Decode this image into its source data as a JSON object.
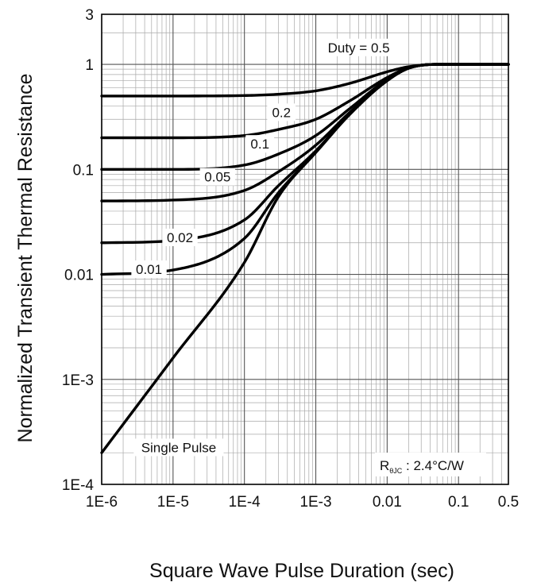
{
  "chart_data": {
    "type": "line",
    "title": "",
    "xlabel": "Square Wave Pulse Duration (sec)",
    "ylabel": "Normalized Transient Thermal Resistance",
    "x_scale": "log",
    "y_scale": "log",
    "xlim": [
      1e-06,
      0.5
    ],
    "ylim": [
      0.0001,
      3
    ],
    "x_tick_labels": [
      "1E-6",
      "1E-5",
      "1E-4",
      "1E-3",
      "0.01",
      "0.1",
      "0.5"
    ],
    "x_tick_values": [
      1e-06,
      1e-05,
      0.0001,
      0.001,
      0.01,
      0.1,
      0.5
    ],
    "y_tick_labels": [
      "1E-4",
      "1E-3",
      "0.01",
      "0.1",
      "1",
      "3"
    ],
    "y_tick_values": [
      0.0001,
      0.001,
      0.01,
      0.1,
      1,
      3
    ],
    "grid": true,
    "annotation": {
      "r_main": "R",
      "r_sub": "θJC",
      "r_value": " : 2.4°C/W"
    },
    "series": [
      {
        "name": "Duty = 0.5",
        "x": [
          1e-06,
          1e-05,
          0.0001,
          0.0003,
          0.001,
          0.003,
          0.01,
          0.02,
          0.05,
          0.1,
          0.5
        ],
        "y": [
          0.5,
          0.5,
          0.505,
          0.52,
          0.56,
          0.66,
          0.85,
          0.95,
          1.0,
          1.0,
          1.0
        ]
      },
      {
        "name": "0.2",
        "x": [
          1e-06,
          1e-05,
          0.0001,
          0.0003,
          0.001,
          0.003,
          0.01,
          0.02,
          0.05,
          0.1,
          0.5
        ],
        "y": [
          0.2,
          0.2,
          0.21,
          0.24,
          0.3,
          0.45,
          0.75,
          0.93,
          1.0,
          1.0,
          1.0
        ]
      },
      {
        "name": "0.1",
        "x": [
          1e-06,
          1e-05,
          0.0001,
          0.0003,
          0.001,
          0.003,
          0.01,
          0.02,
          0.05,
          0.1,
          0.5
        ],
        "y": [
          0.1,
          0.1,
          0.11,
          0.14,
          0.21,
          0.38,
          0.72,
          0.92,
          1.0,
          1.0,
          1.0
        ]
      },
      {
        "name": "0.05",
        "x": [
          1e-06,
          1e-05,
          0.0001,
          0.0003,
          0.001,
          0.003,
          0.01,
          0.02,
          0.05,
          0.1,
          0.5
        ],
        "y": [
          0.05,
          0.051,
          0.063,
          0.095,
          0.17,
          0.35,
          0.7,
          0.92,
          1.0,
          1.0,
          1.0
        ]
      },
      {
        "name": "0.02",
        "x": [
          1e-06,
          1e-05,
          0.0001,
          0.0003,
          0.001,
          0.003,
          0.01,
          0.02,
          0.05,
          0.1,
          0.5
        ],
        "y": [
          0.02,
          0.021,
          0.033,
          0.07,
          0.15,
          0.34,
          0.7,
          0.92,
          1.0,
          1.0,
          1.0
        ]
      },
      {
        "name": "0.01",
        "x": [
          1e-06,
          1e-05,
          0.0001,
          0.0003,
          0.001,
          0.003,
          0.01,
          0.02,
          0.05,
          0.1,
          0.5
        ],
        "y": [
          0.01,
          0.011,
          0.022,
          0.06,
          0.145,
          0.335,
          0.7,
          0.92,
          1.0,
          1.0,
          1.0
        ]
      },
      {
        "name": "Single Pulse",
        "x": [
          1e-06,
          1e-05,
          0.0001,
          0.0003,
          0.001,
          0.003,
          0.01,
          0.02,
          0.05,
          0.1,
          0.5
        ],
        "y": [
          0.0002,
          0.0016,
          0.013,
          0.055,
          0.145,
          0.335,
          0.7,
          0.92,
          1.0,
          1.0,
          1.0
        ]
      }
    ]
  }
}
